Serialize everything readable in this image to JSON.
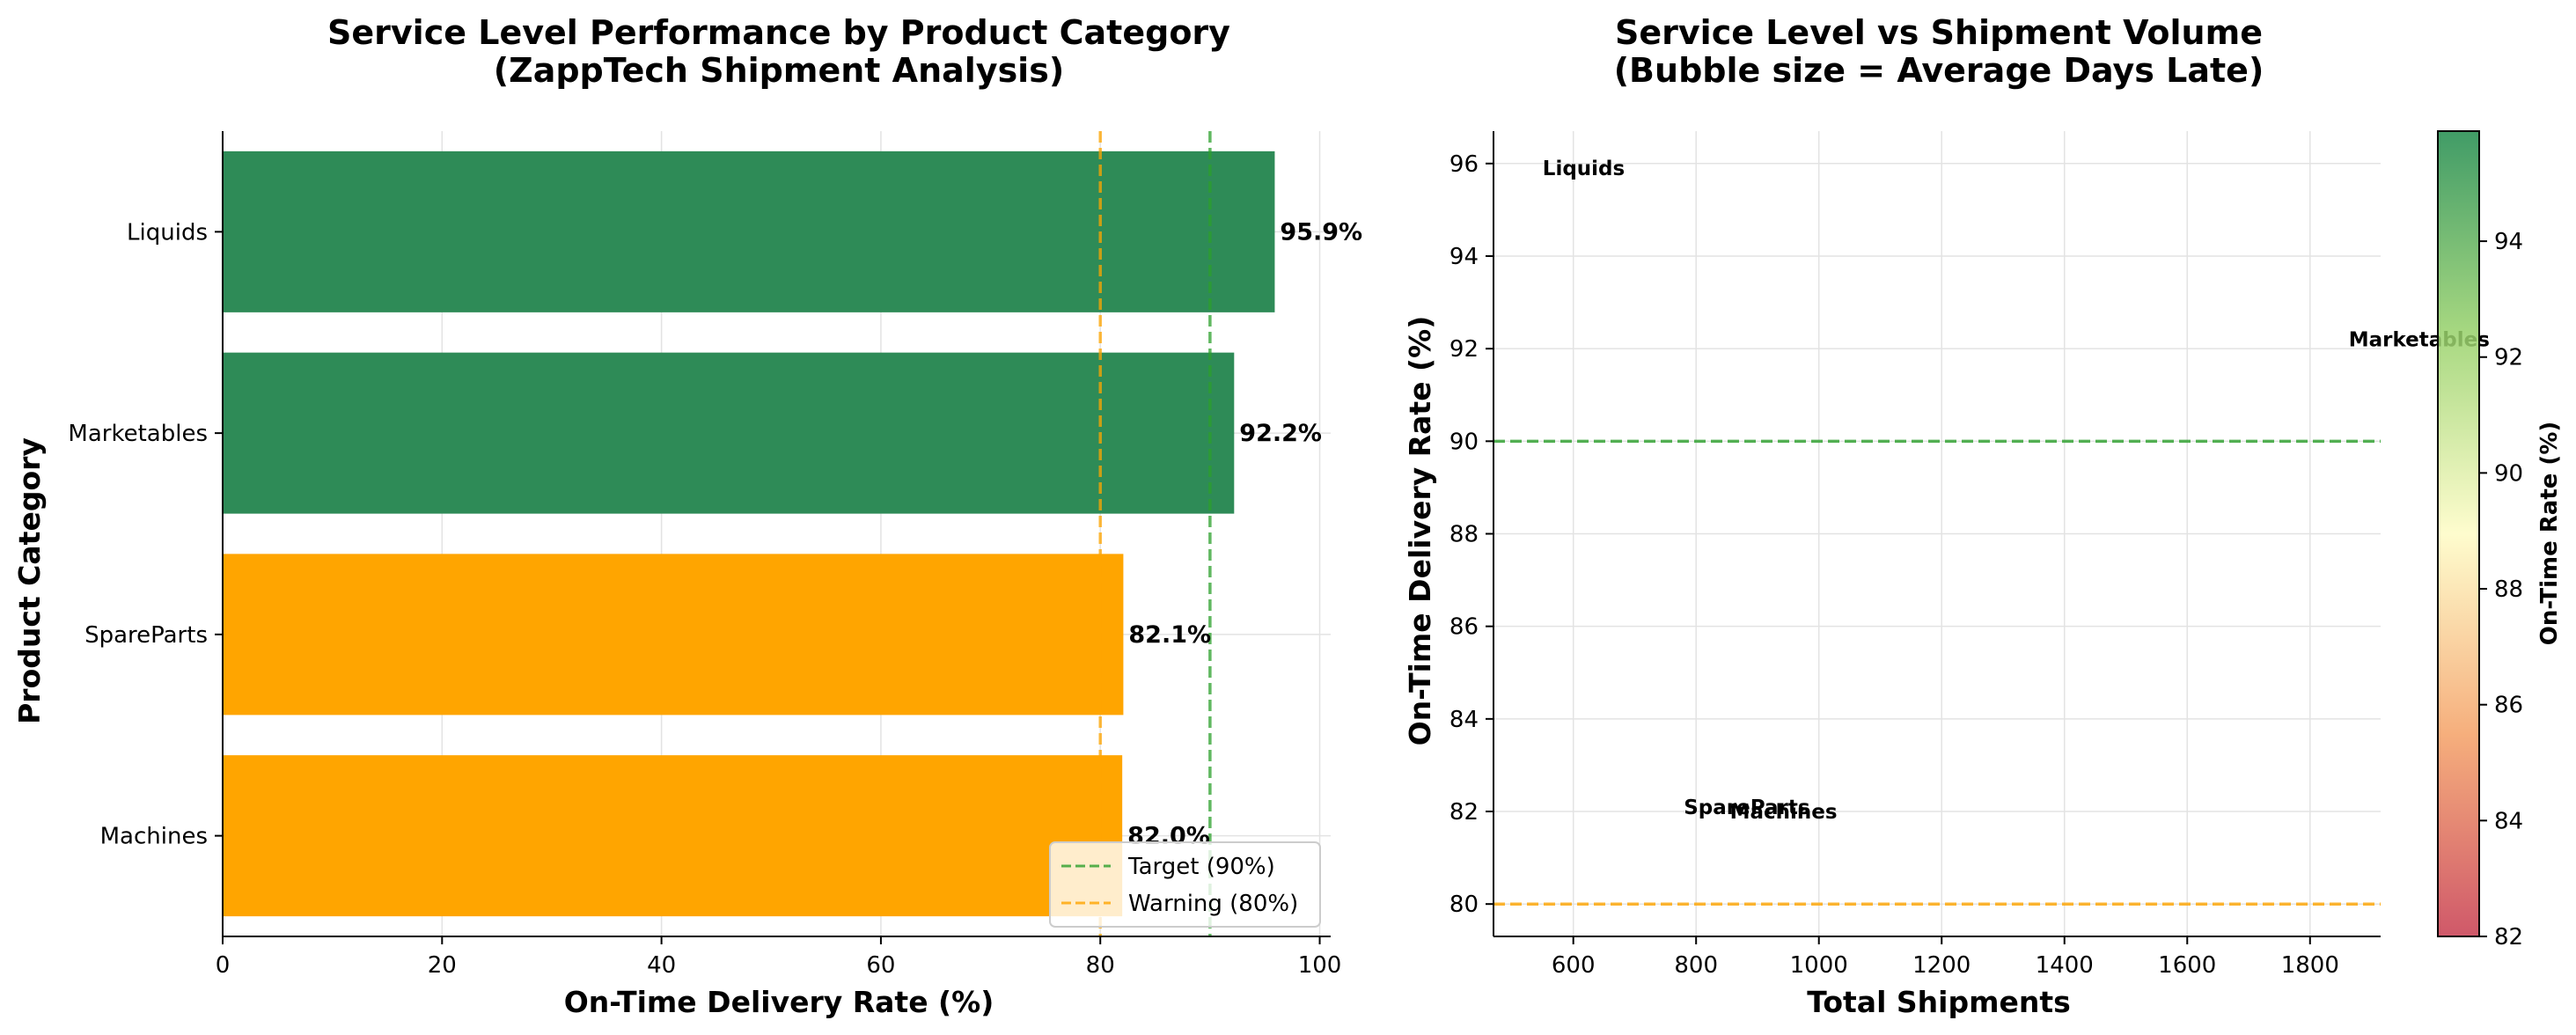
{
  "chart_data": [
    {
      "type": "bar",
      "orientation": "horizontal",
      "title": "Service Level Performance by Product Category\n(ZappTech Shipment Analysis)",
      "xlabel": "On-Time Delivery Rate (%)",
      "ylabel": "Product Category",
      "xlim": [
        0,
        101
      ],
      "xticks": [
        0,
        20,
        40,
        60,
        80,
        100
      ],
      "categories": [
        "Liquids",
        "Marketables",
        "SpareParts",
        "Machines"
      ],
      "values": [
        95.9,
        92.2,
        82.1,
        82.0
      ],
      "value_labels": [
        "95.9%",
        "92.2%",
        "82.1%",
        "82.0%"
      ],
      "bar_colors": [
        "#2e8b57",
        "#2e8b57",
        "#ffa500",
        "#ffa500"
      ],
      "reference_lines": [
        {
          "name": "Target (90%)",
          "value": 90,
          "color": "#2ca02c",
          "style": "dashed"
        },
        {
          "name": "Warning (80%)",
          "value": 80,
          "color": "#ffa500",
          "style": "dashed"
        }
      ],
      "legend": {
        "placement": "lower-right",
        "entries": [
          "Target (90%)",
          "Warning (80%)"
        ]
      },
      "grid": true
    },
    {
      "type": "scatter",
      "title": "Service Level vs Shipment Volume\n(Bubble size = Average Days Late)",
      "xlabel": "Total Shipments",
      "ylabel": "On-Time Delivery Rate (%)",
      "xlim": [
        470,
        1915
      ],
      "ylim": [
        79.3,
        96.7
      ],
      "xticks": [
        600,
        800,
        1000,
        1200,
        1400,
        1600,
        1800
      ],
      "yticks": [
        80,
        82,
        84,
        86,
        88,
        90,
        92,
        94,
        96
      ],
      "points": [
        {
          "label": "Liquids",
          "x": 550,
          "y": 95.9
        },
        {
          "label": "Marketables",
          "x": 1863,
          "y": 92.2
        },
        {
          "label": "SpareParts",
          "x": 780,
          "y": 82.1
        },
        {
          "label": "Machines",
          "x": 855,
          "y": 82.0
        }
      ],
      "reference_lines": [
        {
          "value": 90,
          "color": "#2ca02c",
          "style": "dashed"
        },
        {
          "value": 80,
          "color": "#ffa500",
          "style": "dashed"
        }
      ],
      "colorbar": {
        "label": "On-Time Rate (%)",
        "range": [
          82,
          95.9
        ],
        "ticks": [
          82,
          84,
          86,
          88,
          90,
          92,
          94
        ],
        "colormap": "RdYlGn"
      },
      "grid": true
    }
  ]
}
